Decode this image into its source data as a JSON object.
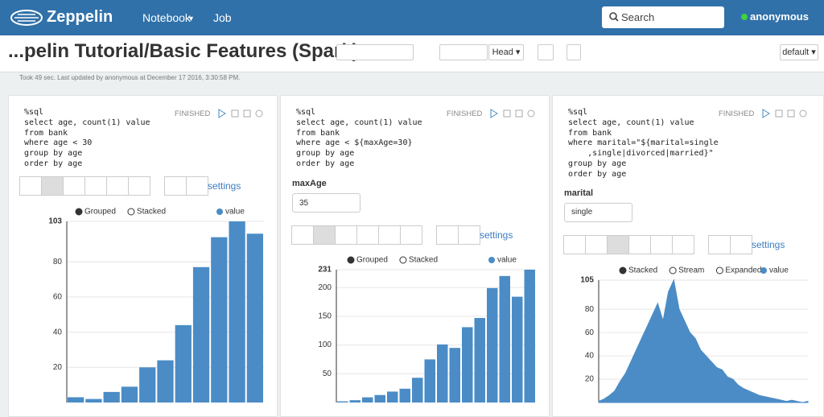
{
  "navbar": {
    "brand": "Zeppelin",
    "menu": [
      "Notebook",
      "Job"
    ],
    "search": "Search",
    "user": "anonymous"
  },
  "note": {
    "title": "...pelin Tutorial/Basic Features (Spark)",
    "run_mode": "Head",
    "interpreter": "default",
    "info": "Took 49 sec. Last updated by anonymous at December 17 2016, 3:30:58 PM."
  },
  "paragraphs": [
    {
      "status": "FINISHED",
      "settings": "settings",
      "code": [
        "%sql",
        "select age, count(1) value",
        "from bank",
        "where age < 30",
        "group by age",
        "order by age"
      ],
      "chart": {
        "type": "bar",
        "legend": [
          "Grouped",
          "Stacked"
        ],
        "series": [
          {
            "name": "value",
            "color": "#4b8cc6",
            "values": [
              3,
              2,
              6,
              9,
              20,
              24,
              44,
              77,
              94,
              103,
              96
            ]
          }
        ],
        "ylim": [
          0,
          103
        ],
        "yticks": [
          20,
          40,
          60,
          80,
          103
        ]
      }
    },
    {
      "status": "FINISHED",
      "settings": "settings",
      "code": [
        "%sql",
        "select age, count(1) value",
        "from bank",
        "where age < ${maxAge=30}",
        "group by age",
        "order by age"
      ],
      "form": {
        "label": "maxAge",
        "value": "35"
      },
      "chart": {
        "type": "bar",
        "legend": [
          "Grouped",
          "Stacked"
        ],
        "series": [
          {
            "name": "value",
            "color": "#4b8cc6",
            "values": [
              2,
              4,
              9,
              13,
              19,
              24,
              43,
              75,
              101,
              95,
              131,
              147,
              199,
              220,
              184,
              231
            ]
          }
        ],
        "ylim": [
          0,
          231
        ],
        "yticks": [
          50,
          100,
          150,
          200,
          231
        ]
      }
    },
    {
      "status": "FINISHED",
      "settings": "settings",
      "code": [
        "%sql",
        "select age, count(1) value",
        "from bank",
        "where marital=\"${marital=single",
        "    ,single|divorced|married}\"",
        "group by age",
        "order by age"
      ],
      "form": {
        "label": "marital",
        "value": "single"
      },
      "chart": {
        "type": "area",
        "legend": [
          "Stacked",
          "Stream",
          "Expanded"
        ],
        "series": [
          {
            "name": "value",
            "color": "#4b8cc6",
            "values": [
              1,
              3,
              6,
              10,
              18,
              25,
              35,
              45,
              55,
              65,
              75,
              85,
              70,
              95,
              105,
              80,
              70,
              60,
              55,
              45,
              40,
              35,
              30,
              28,
              22,
              20,
              15,
              12,
              10,
              8,
              6,
              5,
              4,
              3,
              2,
              1,
              2,
              1,
              0,
              1
            ]
          }
        ],
        "ylim": [
          0,
          105
        ],
        "yticks": [
          20,
          40,
          60,
          80,
          105
        ]
      }
    }
  ]
}
